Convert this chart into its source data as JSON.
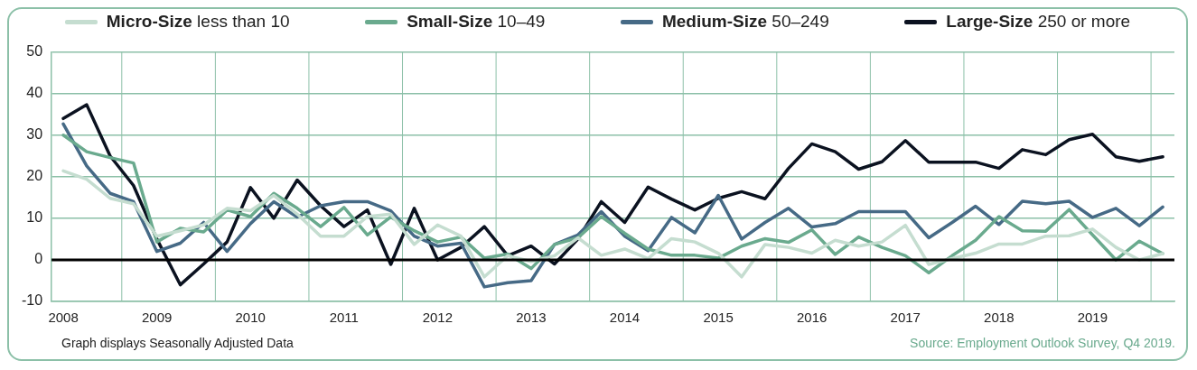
{
  "chart_data": {
    "type": "line",
    "categories": [
      "2008",
      null,
      null,
      null,
      "2009",
      null,
      null,
      null,
      "2010",
      null,
      null,
      null,
      "2011",
      null,
      null,
      null,
      "2012",
      null,
      null,
      null,
      "2013",
      null,
      null,
      null,
      "2014",
      null,
      null,
      null,
      "2015",
      null,
      null,
      null,
      "2016",
      null,
      null,
      null,
      "2017",
      null,
      null,
      null,
      "2018",
      null,
      null,
      null,
      "2019",
      null,
      null,
      null
    ],
    "series": [
      {
        "name": "Micro-Size less than 10",
        "color": "#c5ddd0",
        "values": [
          21.4,
          19.4,
          14.8,
          13.5,
          5.7,
          7,
          8.4,
          12.4,
          11.8,
          15.5,
          11,
          5.7,
          5.7,
          10.4,
          11,
          3.7,
          8.4,
          5.7,
          -4.1,
          1,
          -0.4,
          1,
          5.3,
          1.1,
          2.6,
          0.3,
          5.1,
          4.3,
          1.6,
          -4.1,
          3.7,
          3,
          1.6,
          4.7,
          3.3,
          4.3,
          8.3,
          -1.1,
          0.3,
          1.6,
          3.8,
          3.8,
          5.7,
          5.8,
          7.4,
          3,
          0,
          1.5
        ]
      },
      {
        "name": "Small-Size 10–49",
        "color": "#6aaa8e",
        "values": [
          30,
          26,
          24.6,
          23.3,
          4.3,
          7.6,
          6.7,
          12,
          10.4,
          16,
          12.4,
          8,
          12.6,
          6,
          10.3,
          7,
          4.3,
          5.5,
          0.4,
          1.4,
          -2.1,
          3.7,
          5.3,
          10.4,
          6.4,
          2.6,
          1.1,
          1.1,
          0.4,
          3.3,
          5.1,
          4.2,
          7.2,
          1.3,
          5.5,
          3,
          1,
          -3.1,
          1,
          4.7,
          10.4,
          7,
          6.9,
          12.1,
          6,
          0,
          4.5,
          1.5
        ]
      },
      {
        "name": "Medium-Size 50–249",
        "color": "#466a86",
        "values": [
          32.7,
          22.6,
          16,
          14,
          2,
          4,
          9,
          2,
          8.7,
          14,
          10.3,
          13,
          14,
          14,
          11.8,
          5.7,
          3.3,
          4,
          -6.5,
          -5.5,
          -5,
          3.7,
          6,
          11.6,
          5.7,
          2.2,
          10.2,
          6.5,
          15.5,
          5,
          9,
          12.4,
          7.9,
          8.7,
          11.6,
          11.6,
          11.6,
          5.3,
          9,
          12.9,
          8.5,
          14.1,
          13.5,
          14.1,
          10.2,
          12.4,
          8.2,
          12.7
        ]
      },
      {
        "name": "Large-Size 250 or more",
        "color": "#0b1220",
        "values": [
          34,
          37.3,
          25,
          17.9,
          5,
          -6,
          -1,
          4.3,
          17.4,
          10,
          19.2,
          13,
          8,
          12,
          -1.1,
          12.4,
          0,
          3,
          8,
          1,
          3.3,
          -1,
          5,
          14,
          9,
          17.5,
          14.6,
          12,
          14.8,
          16.4,
          14.7,
          22,
          27.9,
          26,
          21.8,
          23.6,
          28.7,
          23.5,
          23.5,
          23.5,
          22,
          26.5,
          25.3,
          28.9,
          30.2,
          24.8,
          23.7,
          24.8
        ]
      }
    ],
    "ylim": [
      -10,
      50
    ],
    "yticks": [
      -10,
      0,
      10,
      20,
      30,
      40,
      50
    ],
    "grid": true,
    "legend": "top",
    "marker": "none",
    "line_style": "solid",
    "ref_lines": [
      {
        "axis": "y",
        "value": 0,
        "color": "#000000"
      }
    ],
    "annotations": [
      "Graph displays Seasonally Adjusted Data",
      "Source: Employment Outlook Survey, Q4 2019."
    ]
  }
}
